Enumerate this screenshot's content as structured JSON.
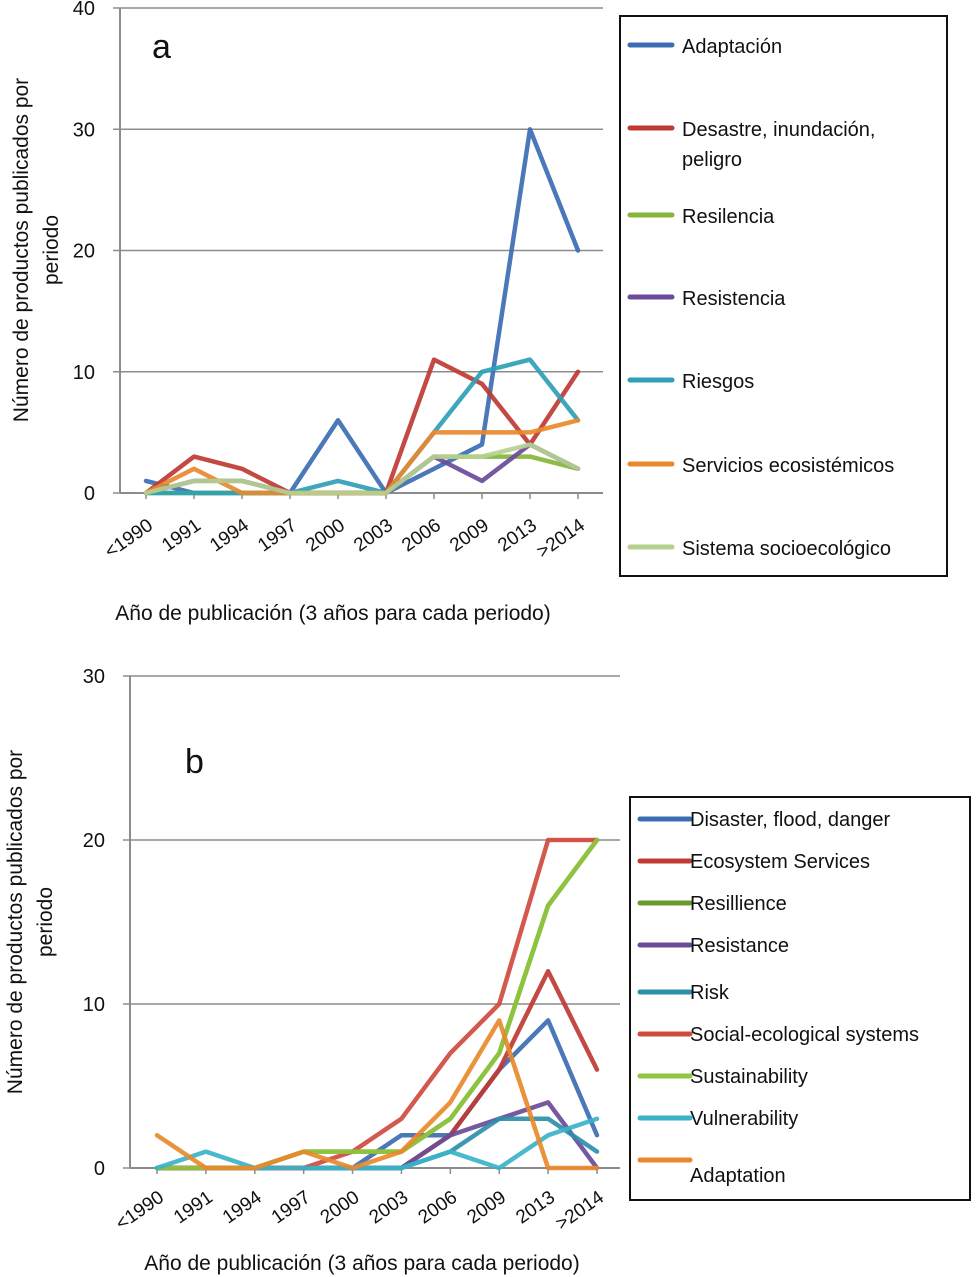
{
  "figure": {
    "panel_a_letter": "a",
    "panel_b_letter": "b"
  },
  "chart_data": [
    {
      "id": "a",
      "type": "line",
      "panel_label": "a",
      "title": "",
      "xlabel": "Año de publicación (3 años para cada periodo)",
      "ylabel_lines": [
        "Número de productos publicados por",
        "periodo"
      ],
      "ylim": [
        0,
        40
      ],
      "yticks": [
        0,
        10,
        20,
        30,
        40
      ],
      "grid": true,
      "legend_position": "right",
      "categories": [
        "<1990",
        "1991",
        "1994",
        "1997",
        "2000",
        "2003",
        "2006",
        "2009",
        "2013",
        ">2014"
      ],
      "series": [
        {
          "name": "Adaptación",
          "color": "#3b6db3",
          "values": [
            1,
            0,
            0,
            0,
            6,
            0,
            2,
            4,
            30,
            20
          ]
        },
        {
          "name": "Desastre, inundación, peligro",
          "color": "#bf3a33",
          "values": [
            0,
            3,
            2,
            0,
            0,
            0,
            11,
            9,
            4,
            10
          ]
        },
        {
          "name": "Resilencia",
          "color": "#86b53c",
          "values": [
            0,
            0,
            0,
            0,
            0,
            0,
            3,
            3,
            3,
            2
          ]
        },
        {
          "name": "Resistencia",
          "color": "#6b4b9a",
          "values": [
            0,
            1,
            1,
            0,
            0,
            0,
            3,
            1,
            4,
            2
          ]
        },
        {
          "name": "Riesgos",
          "color": "#2e9fb5",
          "values": [
            0,
            0,
            0,
            0,
            1,
            0,
            5,
            10,
            11,
            6
          ]
        },
        {
          "name": "Servicios ecosistémicos",
          "color": "#e8892b",
          "values": [
            0,
            2,
            0,
            0,
            0,
            0,
            5,
            5,
            5,
            6
          ]
        },
        {
          "name": "Sistema socioecológico",
          "color": "#b6d08f",
          "values": [
            0,
            1,
            1,
            0,
            0,
            0,
            3,
            3,
            4,
            2
          ]
        }
      ]
    },
    {
      "id": "b",
      "type": "line",
      "panel_label": "b",
      "title": "",
      "xlabel": "Año de publicación (3 años para cada periodo)",
      "ylabel_lines": [
        "Número de productos publicados por",
        "periodo"
      ],
      "ylim": [
        0,
        30
      ],
      "yticks": [
        0,
        10,
        20,
        30
      ],
      "grid": true,
      "legend_position": "right",
      "categories": [
        "<1990",
        "1991",
        "1994",
        "1997",
        "2000",
        "2003",
        "2006",
        "2009",
        "2013",
        ">2014"
      ],
      "series": [
        {
          "name": "Disaster, flood, danger",
          "color": "#3b6db3",
          "values": [
            0,
            0,
            0,
            0,
            0,
            2,
            2,
            6,
            9,
            2
          ]
        },
        {
          "name": "Ecosystem Services",
          "color": "#bf3a33",
          "values": [
            0,
            0,
            0,
            0,
            0,
            0,
            2,
            6,
            12,
            6
          ]
        },
        {
          "name": "Resillience",
          "color": "#6a9a2e",
          "values": [
            0,
            0,
            0,
            1,
            1,
            1,
            3,
            7,
            16,
            20
          ]
        },
        {
          "name": "Resistance",
          "color": "#6b4b9a",
          "values": [
            0,
            0,
            0,
            0,
            0,
            0,
            2,
            3,
            4,
            0
          ]
        },
        {
          "name": "Risk",
          "color": "#2e8fa8",
          "values": [
            0,
            0,
            0,
            0,
            0,
            0,
            1,
            3,
            3,
            1
          ]
        },
        {
          "name": "Social-ecological systems",
          "color": "#d04a3e",
          "values": [
            0,
            0,
            0,
            0,
            1,
            3,
            7,
            10,
            20,
            20
          ]
        },
        {
          "name": "Sustainability",
          "color": "#8fc63f",
          "values": [
            0,
            0,
            0,
            1,
            1,
            1,
            3,
            7,
            16,
            20
          ]
        },
        {
          "name": "Vulnerability",
          "color": "#3ab3c7",
          "values": [
            0,
            1,
            0,
            0,
            0,
            0,
            1,
            0,
            2,
            3
          ]
        },
        {
          "name": "Adaptation",
          "color": "#e8892b",
          "values": [
            2,
            0,
            0,
            1,
            0,
            1,
            4,
            9,
            0,
            0
          ]
        }
      ]
    }
  ]
}
